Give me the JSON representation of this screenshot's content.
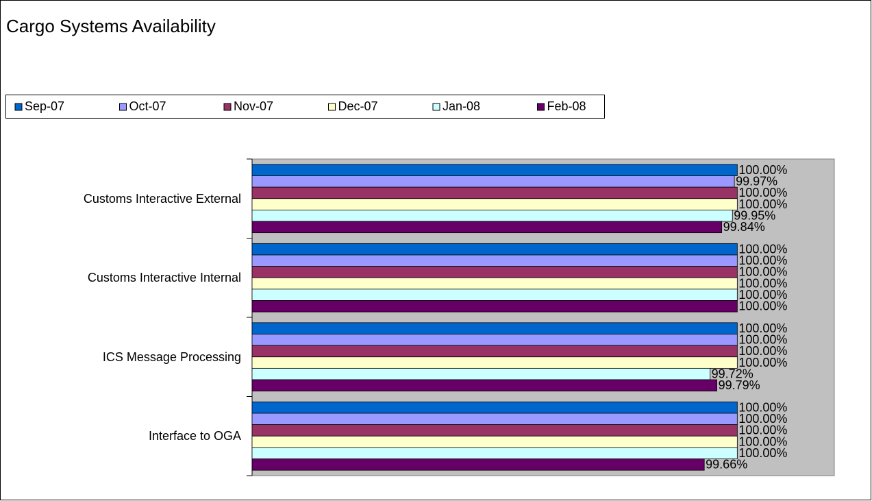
{
  "chart_data": {
    "type": "hbar",
    "title": "Cargo Systems Availability",
    "categories": [
      "Customs Interactive External",
      "Customs Interactive Internal",
      "ICS Message Processing",
      "Interface to OGA"
    ],
    "series": [
      {
        "name": "Sep-07",
        "color": "#0066cc",
        "values": [
          100,
          100,
          100,
          100
        ],
        "value_labels": [
          "100.00%",
          "100.00%",
          "100.00%",
          "100.00%"
        ]
      },
      {
        "name": "Oct-07",
        "color": "#9999ff",
        "values": [
          99.97,
          100,
          100,
          100
        ],
        "value_labels": [
          "99.97%",
          "100.00%",
          "100.00%",
          "100.00%"
        ]
      },
      {
        "name": "Nov-07",
        "color": "#993366",
        "values": [
          100,
          100,
          100,
          100
        ],
        "value_labels": [
          "100.00%",
          "100.00%",
          "100.00%",
          "100.00%"
        ]
      },
      {
        "name": "Dec-07",
        "color": "#ffffcc",
        "values": [
          100,
          100,
          100,
          100
        ],
        "value_labels": [
          "100.00%",
          "100.00%",
          "100.00%",
          "100.00%"
        ]
      },
      {
        "name": "Jan-08",
        "color": "#ccffff",
        "values": [
          99.95,
          100,
          99.72,
          100
        ],
        "value_labels": [
          "99.95%",
          "100.00%",
          "99.72%",
          "100.00%"
        ]
      },
      {
        "name": "Feb-08",
        "color": "#660066",
        "values": [
          99.84,
          100,
          99.79,
          99.66
        ],
        "value_labels": [
          "99.84%",
          "100.00%",
          "99.79%",
          "99.66%"
        ]
      }
    ],
    "xlim": [
      95,
      101
    ]
  }
}
